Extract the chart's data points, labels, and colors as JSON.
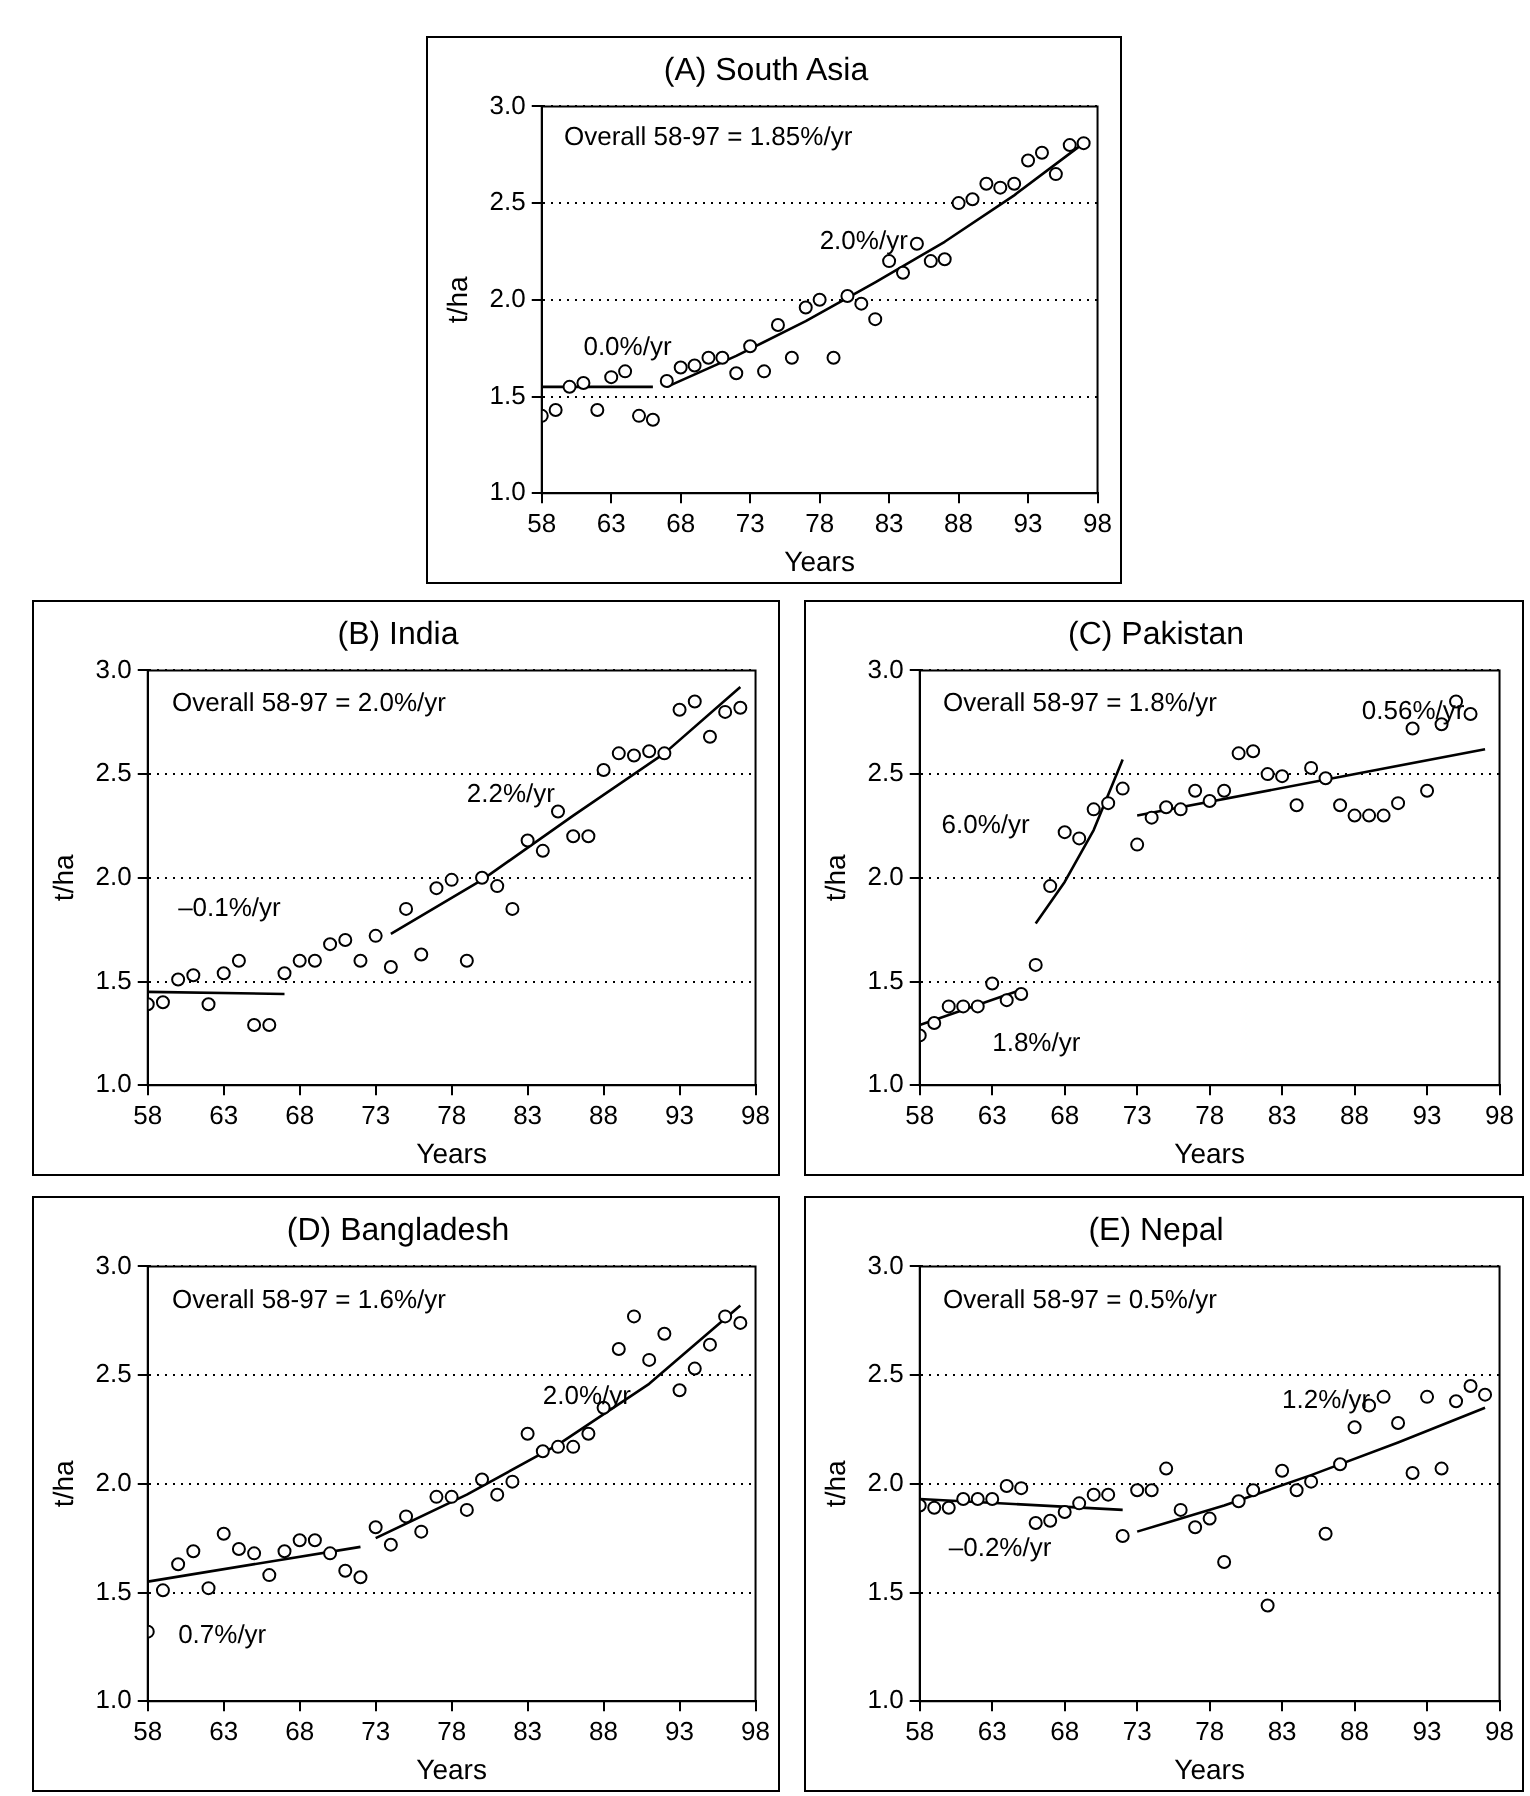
{
  "chart_data": [
    {
      "type": "scatter",
      "title": "(A) South Asia",
      "xlabel": "Years",
      "ylabel": "t/ha",
      "marker": "circle",
      "grid": "y",
      "legend": false,
      "x": [
        58,
        59,
        60,
        61,
        62,
        63,
        64,
        65,
        66,
        67,
        68,
        69,
        70,
        71,
        72,
        73,
        74,
        75,
        76,
        77,
        78,
        79,
        80,
        81,
        82,
        83,
        84,
        85,
        86,
        87,
        88,
        89,
        90,
        91,
        92,
        93,
        94,
        95,
        96,
        97
      ],
      "xlim": [
        58,
        98
      ],
      "xticks": [
        58,
        63,
        68,
        73,
        78,
        83,
        88,
        93,
        98
      ],
      "ylim": [
        1,
        3
      ],
      "yticks": [
        {
          "value": 1,
          "label": "1.0"
        },
        {
          "value": 1.5,
          "label": "1.5"
        },
        {
          "value": 2,
          "label": "2.0"
        },
        {
          "value": 2.5,
          "label": "2.5"
        },
        {
          "value": 3,
          "label": "3.0"
        }
      ],
      "series": [
        {
          "color": "#000000",
          "values": [
            1.4,
            1.43,
            1.55,
            1.57,
            1.43,
            1.6,
            1.63,
            1.4,
            1.38,
            1.58,
            1.65,
            1.66,
            1.7,
            1.7,
            1.62,
            1.76,
            1.63,
            1.87,
            1.7,
            1.96,
            2.0,
            1.7,
            2.02,
            1.98,
            1.9,
            2.2,
            2.14,
            2.29,
            2.2,
            2.21,
            2.5,
            2.52,
            2.6,
            2.58,
            2.6,
            2.72,
            2.76,
            2.65,
            2.8,
            2.81
          ]
        },
        {
          "type": "line",
          "marker": "none",
          "color": "#000000",
          "x": [
            58,
            66
          ],
          "values": [
            1.55,
            1.55
          ]
        },
        {
          "type": "line",
          "marker": "none",
          "color": "#000000",
          "x": [
            67,
            72,
            77,
            82,
            87,
            92,
            97
          ],
          "values": [
            1.55,
            1.71,
            1.89,
            2.09,
            2.3,
            2.54,
            2.81
          ]
        }
      ],
      "annotations": [
        "Overall 58-97 = 1.85%/yr",
        "0.0%/yr",
        "2.0%/yr"
      ]
    },
    {
      "type": "scatter",
      "title": "(B) India",
      "xlabel": "Years",
      "ylabel": "t/ha",
      "marker": "circle",
      "grid": "y",
      "legend": false,
      "x": [
        58,
        59,
        60,
        61,
        62,
        63,
        64,
        65,
        66,
        67,
        68,
        69,
        70,
        71,
        72,
        73,
        74,
        75,
        76,
        77,
        78,
        79,
        80,
        81,
        82,
        83,
        84,
        85,
        86,
        87,
        88,
        89,
        90,
        91,
        92,
        93,
        94,
        95,
        96,
        97
      ],
      "xlim": [
        58,
        98
      ],
      "xticks": [
        58,
        63,
        68,
        73,
        78,
        83,
        88,
        93,
        98
      ],
      "ylim": [
        1,
        3
      ],
      "yticks": [
        {
          "value": 1,
          "label": "1.0"
        },
        {
          "value": 1.5,
          "label": "1.5"
        },
        {
          "value": 2,
          "label": "2.0"
        },
        {
          "value": 2.5,
          "label": "2.5"
        },
        {
          "value": 3,
          "label": "3.0"
        }
      ],
      "series": [
        {
          "color": "#000000",
          "values": [
            1.39,
            1.4,
            1.51,
            1.53,
            1.39,
            1.54,
            1.6,
            1.29,
            1.29,
            1.54,
            1.6,
            1.6,
            1.68,
            1.7,
            1.6,
            1.72,
            1.57,
            1.85,
            1.63,
            1.95,
            1.99,
            1.6,
            2.0,
            1.96,
            1.85,
            2.18,
            2.13,
            2.32,
            2.2,
            2.2,
            2.52,
            2.6,
            2.59,
            2.61,
            2.6,
            2.81,
            2.85,
            2.68,
            2.8,
            2.82
          ]
        },
        {
          "type": "line",
          "marker": "none",
          "color": "#000000",
          "x": [
            58,
            67
          ],
          "values": [
            1.45,
            1.44
          ]
        },
        {
          "type": "line",
          "marker": "none",
          "color": "#000000",
          "x": [
            74,
            80,
            86,
            92,
            97
          ],
          "values": [
            1.73,
            1.99,
            2.3,
            2.6,
            2.92
          ]
        }
      ],
      "annotations": [
        "Overall 58-97 = 2.0%/yr",
        "–0.1%/yr",
        "2.2%/yr"
      ]
    },
    {
      "type": "scatter",
      "title": "(C) Pakistan",
      "xlabel": "Years",
      "ylabel": "t/ha",
      "marker": "circle",
      "grid": "y",
      "legend": false,
      "xlim": [
        58,
        98
      ],
      "xticks": [
        58,
        63,
        68,
        73,
        78,
        83,
        88,
        93,
        98
      ],
      "ylim": [
        1,
        3
      ],
      "yticks": [
        {
          "value": 1,
          "label": "1.0"
        },
        {
          "value": 1.5,
          "label": "1.5"
        },
        {
          "value": 2,
          "label": "2.0"
        },
        {
          "value": 2.5,
          "label": "2.5"
        },
        {
          "value": 3,
          "label": "3.0"
        }
      ],
      "series": [
        {
          "color": "#000000",
          "x": [
            58,
            59,
            60,
            61,
            62,
            63,
            64,
            65,
            66,
            67,
            68,
            69,
            70,
            71,
            72,
            73,
            74,
            75,
            76,
            77,
            78,
            79,
            80,
            81,
            82,
            83,
            84,
            85,
            86,
            87,
            88,
            89,
            90,
            91,
            92,
            93,
            94,
            95,
            96
          ],
          "values": [
            1.24,
            1.3,
            1.38,
            1.38,
            1.38,
            1.49,
            1.41,
            1.44,
            1.58,
            1.96,
            2.22,
            2.19,
            2.33,
            2.36,
            2.43,
            2.16,
            2.29,
            2.34,
            2.33,
            2.42,
            2.37,
            2.42,
            2.6,
            2.61,
            2.5,
            2.49,
            2.35,
            2.53,
            2.48,
            2.35,
            2.3,
            2.3,
            2.3,
            2.36,
            2.72,
            2.42,
            2.74,
            2.85,
            2.79
          ]
        },
        {
          "type": "line",
          "marker": "none",
          "color": "#000000",
          "x": [
            58,
            65
          ],
          "values": [
            1.29,
            1.46
          ]
        },
        {
          "type": "line",
          "marker": "none",
          "color": "#000000",
          "x": [
            66,
            68,
            70,
            72
          ],
          "values": [
            1.78,
            1.98,
            2.23,
            2.57
          ]
        },
        {
          "type": "line",
          "marker": "none",
          "color": "#000000",
          "x": [
            73,
            97
          ],
          "values": [
            2.3,
            2.62
          ]
        }
      ],
      "annotations": [
        "Overall 58-97 = 1.8%/yr",
        "6.0%/yr",
        "1.8%/yr",
        "0.56%/yr"
      ]
    },
    {
      "type": "scatter",
      "title": "(D) Bangladesh",
      "xlabel": "Years",
      "ylabel": "t/ha",
      "marker": "circle",
      "grid": "y",
      "legend": false,
      "x": [
        58,
        59,
        60,
        61,
        62,
        63,
        64,
        65,
        66,
        67,
        68,
        69,
        70,
        71,
        72,
        73,
        74,
        75,
        76,
        77,
        78,
        79,
        80,
        81,
        82,
        83,
        84,
        85,
        86,
        87,
        88,
        89,
        90,
        91,
        92,
        93,
        94,
        95,
        96,
        97
      ],
      "xlim": [
        58,
        98
      ],
      "xticks": [
        58,
        63,
        68,
        73,
        78,
        83,
        88,
        93,
        98
      ],
      "ylim": [
        1,
        3
      ],
      "yticks": [
        {
          "value": 1,
          "label": "1.0"
        },
        {
          "value": 1.5,
          "label": "1.5"
        },
        {
          "value": 2,
          "label": "2.0"
        },
        {
          "value": 2.5,
          "label": "2.5"
        },
        {
          "value": 3,
          "label": "3.0"
        }
      ],
      "series": [
        {
          "color": "#000000",
          "values": [
            1.32,
            1.51,
            1.63,
            1.69,
            1.52,
            1.77,
            1.7,
            1.68,
            1.58,
            1.69,
            1.74,
            1.74,
            1.68,
            1.6,
            1.57,
            1.8,
            1.72,
            1.85,
            1.78,
            1.94,
            1.94,
            1.88,
            2.02,
            1.95,
            2.01,
            2.23,
            2.15,
            2.17,
            2.17,
            2.23,
            2.35,
            2.62,
            2.77,
            2.57,
            2.69,
            2.43,
            2.53,
            2.64,
            2.77,
            2.74
          ]
        },
        {
          "type": "line",
          "marker": "none",
          "color": "#000000",
          "x": [
            58,
            72
          ],
          "values": [
            1.55,
            1.71
          ]
        },
        {
          "type": "line",
          "marker": "none",
          "color": "#000000",
          "x": [
            73,
            79,
            85,
            91,
            97
          ],
          "values": [
            1.75,
            1.95,
            2.18,
            2.46,
            2.82
          ]
        }
      ],
      "annotations": [
        "Overall 58-97 = 1.6%/yr",
        "0.7%/yr",
        "2.0%/yr"
      ]
    },
    {
      "type": "scatter",
      "title": "(E) Nepal",
      "xlabel": "Years",
      "ylabel": "t/ha",
      "marker": "circle",
      "grid": "y",
      "legend": false,
      "x": [
        58,
        59,
        60,
        61,
        62,
        63,
        64,
        65,
        66,
        67,
        68,
        69,
        70,
        71,
        72,
        73,
        74,
        75,
        76,
        77,
        78,
        79,
        80,
        81,
        82,
        83,
        84,
        85,
        86,
        87,
        88,
        89,
        90,
        91,
        92,
        93,
        94,
        95,
        96,
        97
      ],
      "xlim": [
        58,
        98
      ],
      "xticks": [
        58,
        63,
        68,
        73,
        78,
        83,
        88,
        93,
        98
      ],
      "ylim": [
        1,
        3
      ],
      "yticks": [
        {
          "value": 1,
          "label": "1.0"
        },
        {
          "value": 1.5,
          "label": "1.5"
        },
        {
          "value": 2,
          "label": "2.0"
        },
        {
          "value": 2.5,
          "label": "2.5"
        },
        {
          "value": 3,
          "label": "3.0"
        }
      ],
      "series": [
        {
          "color": "#000000",
          "values": [
            1.9,
            1.89,
            1.89,
            1.93,
            1.93,
            1.93,
            1.99,
            1.98,
            1.82,
            1.83,
            1.87,
            1.91,
            1.95,
            1.95,
            1.76,
            1.97,
            1.97,
            2.07,
            1.88,
            1.8,
            1.84,
            1.64,
            1.92,
            1.97,
            1.44,
            2.06,
            1.97,
            2.01,
            1.77,
            2.09,
            2.26,
            2.36,
            2.4,
            2.28,
            2.05,
            2.4,
            2.07,
            2.38,
            2.45,
            2.41
          ]
        },
        {
          "type": "line",
          "marker": "none",
          "color": "#000000",
          "x": [
            58,
            72
          ],
          "values": [
            1.93,
            1.88
          ]
        },
        {
          "type": "line",
          "marker": "none",
          "color": "#000000",
          "x": [
            73,
            79,
            85,
            91,
            97
          ],
          "values": [
            1.78,
            1.9,
            2.04,
            2.19,
            2.35
          ]
        }
      ],
      "annotations": [
        "Overall 58-97 = 0.5%/yr",
        "–0.2%/yr",
        "1.2%/yr"
      ]
    }
  ]
}
